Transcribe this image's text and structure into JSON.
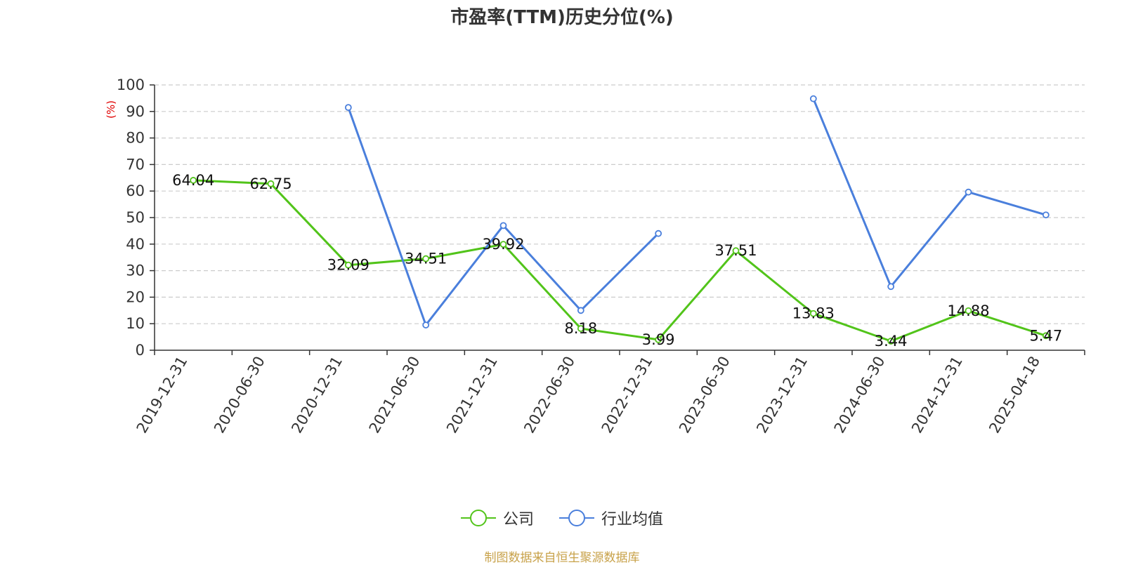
{
  "chart_data": {
    "type": "line",
    "title": "市盈率(TTM)历史分位(%)",
    "ylabel": "(%)",
    "ylim": [
      0,
      100
    ],
    "yticks": [
      0,
      10,
      20,
      30,
      40,
      50,
      60,
      70,
      80,
      90,
      100
    ],
    "grid": true,
    "legend_position": "bottom",
    "categories": [
      "2019-12-31",
      "2020-06-30",
      "2020-12-31",
      "2021-06-30",
      "2021-12-31",
      "2022-06-30",
      "2022-12-31",
      "2023-06-30",
      "2023-12-31",
      "2024-06-30",
      "2024-12-31",
      "2025-04-18"
    ],
    "series": [
      {
        "name": "公司",
        "color": "#52c41a",
        "show_labels": true,
        "values": [
          64.04,
          62.75,
          32.09,
          34.51,
          39.92,
          8.18,
          3.99,
          37.51,
          13.83,
          3.44,
          14.88,
          5.47
        ],
        "labels": [
          "64.04",
          "62.75",
          "32.09",
          "34.51",
          "39.92",
          "8.18",
          "3.99",
          "37.51",
          "13.83",
          "3.44",
          "14.88",
          "5.47"
        ]
      },
      {
        "name": "行业均值",
        "color": "#4a7fdc",
        "show_labels": false,
        "values": [
          null,
          null,
          91.5,
          9.5,
          47,
          15,
          44,
          null,
          94.8,
          24,
          59.6,
          51
        ]
      }
    ]
  },
  "source": "制图数据来自恒生聚源数据库"
}
